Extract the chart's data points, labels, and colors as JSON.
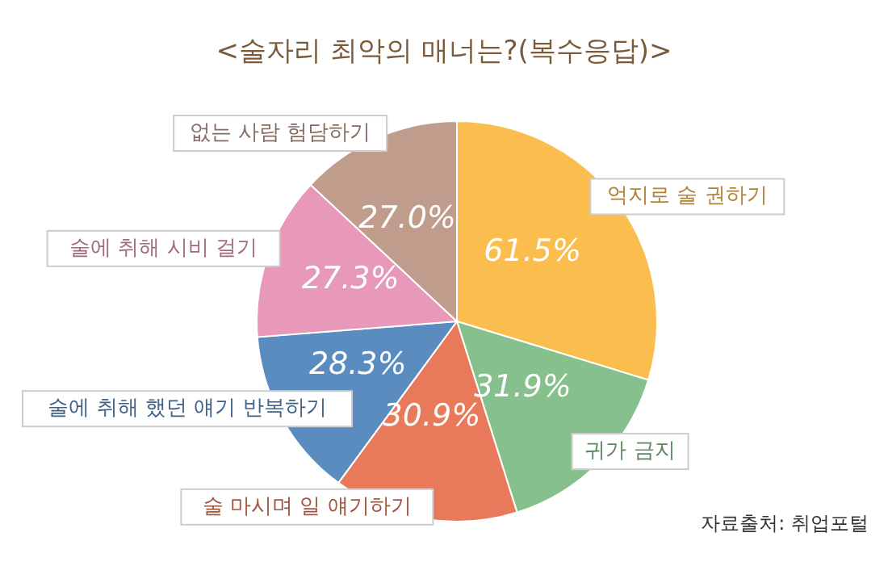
{
  "chart_data": {
    "type": "pie",
    "title": "<술자리 최악의 매너는?(복수응답)>",
    "categories": [
      "억지로 술 권하기",
      "귀가 금지",
      "술 마시며 일 얘기하기",
      "술에 취해 했던 얘기 반복하기",
      "술에 취해 시비 걸기",
      "없는 사람 험담하기"
    ],
    "values": [
      61.5,
      31.9,
      30.9,
      28.3,
      27.3,
      27.0
    ],
    "colors": [
      "#fbbd4e",
      "#86c08c",
      "#e8795a",
      "#5a8cc0",
      "#e898b8",
      "#c09c8c"
    ],
    "value_labels": [
      "61.5%",
      "31.9%",
      "30.9%",
      "28.3%",
      "27.3%",
      "27.0%"
    ],
    "annotations": [
      "자료출처: 취업포털"
    ]
  }
}
